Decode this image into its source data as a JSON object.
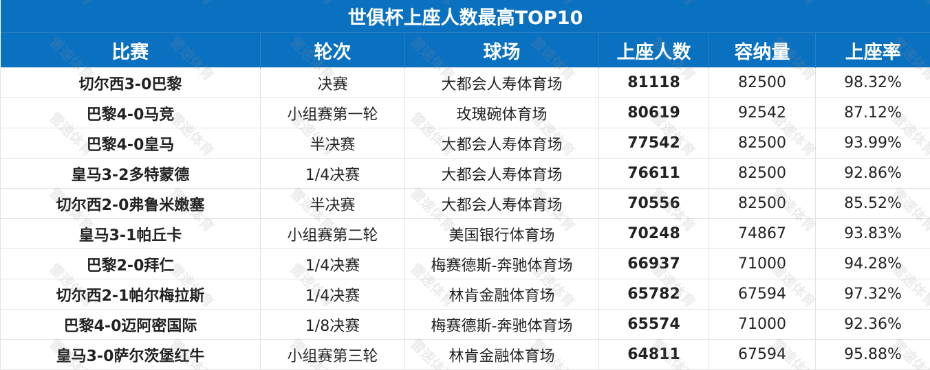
{
  "title": "世俱杯上座人数最高TOP10",
  "watermark": "雷速体育",
  "colors": {
    "header_bg": "#0a70c0",
    "header_text": "#ffffff"
  },
  "chart_data": {
    "type": "table",
    "title": "世俱杯上座人数最高TOP10",
    "columns": [
      "比赛",
      "轮次",
      "球场",
      "上座人数",
      "容纳量",
      "上座率"
    ],
    "rows": [
      [
        "切尔西3-0巴黎",
        "决赛",
        "大都会人寿体育场",
        "81118",
        "82500",
        "98.32%"
      ],
      [
        "巴黎4-0马竞",
        "小组赛第一轮",
        "玫瑰碗体育场",
        "80619",
        "92542",
        "87.12%"
      ],
      [
        "巴黎4-0皇马",
        "半决赛",
        "大都会人寿体育场",
        "77542",
        "82500",
        "93.99%"
      ],
      [
        "皇马3-2多特蒙德",
        "1/4决赛",
        "大都会人寿体育场",
        "76611",
        "82500",
        "92.86%"
      ],
      [
        "切尔西2-0弗鲁米嫩塞",
        "半决赛",
        "大都会人寿体育场",
        "70556",
        "82500",
        "85.52%"
      ],
      [
        "皇马3-1帕丘卡",
        "小组赛第二轮",
        "美国银行体育场",
        "70248",
        "74867",
        "93.83%"
      ],
      [
        "巴黎2-0拜仁",
        "1/4决赛",
        "梅赛德斯-奔驰体育场",
        "66937",
        "71000",
        "94.28%"
      ],
      [
        "切尔西2-1帕尔梅拉斯",
        "1/4决赛",
        "林肯金融体育场",
        "65782",
        "67594",
        "97.32%"
      ],
      [
        "巴黎4-0迈阿密国际",
        "1/8决赛",
        "梅赛德斯-奔驰体育场",
        "65574",
        "71000",
        "92.36%"
      ],
      [
        "皇马3-0萨尔茨堡红牛",
        "小组赛第三轮",
        "林肯金融体育场",
        "64811",
        "67594",
        "95.88%"
      ]
    ]
  }
}
